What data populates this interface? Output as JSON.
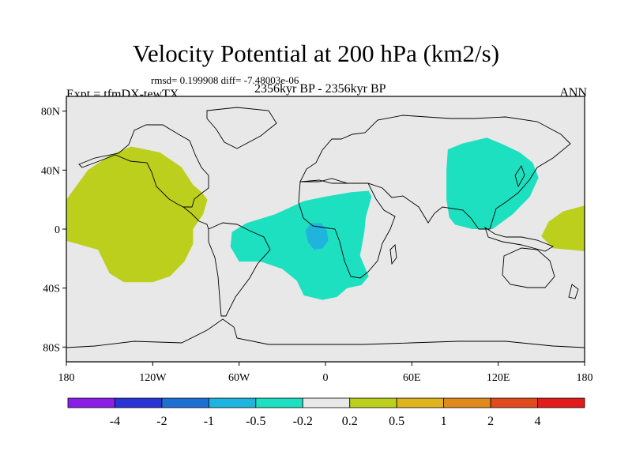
{
  "title": "Velocity Potential at 200 hPa (km2/s)",
  "stats_text": "rmsd= 0.199908 diff= -7.48003e-06",
  "experiment_text": "Expt = tfmDX-tewTX",
  "period_text": "2356kyr BP - 2356kyr BP",
  "season_text": "ANN",
  "map": {
    "projection": "cylindrical-equidistant",
    "lon_range": [
      -180,
      180
    ],
    "lat_range": [
      -90,
      90
    ],
    "background_color": "#e8e8e8",
    "y_ticks": [
      {
        "lat": 80,
        "label": "80N"
      },
      {
        "lat": 40,
        "label": "40N"
      },
      {
        "lat": 0,
        "label": "0"
      },
      {
        "lat": -40,
        "label": "40S"
      },
      {
        "lat": -80,
        "label": "80S"
      }
    ],
    "x_ticks": [
      {
        "lon": -180,
        "label": "180"
      },
      {
        "lon": -120,
        "label": "120W"
      },
      {
        "lon": -60,
        "label": "60W"
      },
      {
        "lon": 0,
        "label": "0"
      },
      {
        "lon": 60,
        "label": "60E"
      },
      {
        "lon": 120,
        "label": "120E"
      },
      {
        "lon": 180,
        "label": "180"
      }
    ],
    "regions": [
      {
        "name": "region-pacific-positive",
        "level": "0.2 to 0.5",
        "color": "#bccf1c",
        "points": [
          [
            -180,
            20
          ],
          [
            -165,
            40
          ],
          [
            -150,
            50
          ],
          [
            -135,
            56
          ],
          [
            -115,
            52
          ],
          [
            -100,
            42
          ],
          [
            -92,
            30
          ],
          [
            -86,
            25
          ],
          [
            -82,
            20
          ],
          [
            -85,
            10
          ],
          [
            -92,
            0
          ],
          [
            -92,
            -10
          ],
          [
            -98,
            -22
          ],
          [
            -108,
            -32
          ],
          [
            -120,
            -36
          ],
          [
            -140,
            -36
          ],
          [
            -150,
            -30
          ],
          [
            -158,
            -14
          ],
          [
            -180,
            -8
          ]
        ]
      },
      {
        "name": "region-east-pacific-positive",
        "level": "0.2 to 0.5",
        "color": "#bccf1c",
        "points": [
          [
            180,
            16
          ],
          [
            165,
            12
          ],
          [
            155,
            5
          ],
          [
            150,
            -5
          ],
          [
            158,
            -13
          ],
          [
            170,
            -14
          ],
          [
            180,
            -15
          ]
        ]
      },
      {
        "name": "region-africa-negative",
        "level": "-0.5 to -0.2",
        "color": "#1de0c0",
        "points": [
          [
            -65,
            -2
          ],
          [
            -55,
            4
          ],
          [
            -35,
            10
          ],
          [
            -15,
            19
          ],
          [
            0,
            22
          ],
          [
            18,
            25
          ],
          [
            30,
            26
          ],
          [
            32,
            22
          ],
          [
            28,
            8
          ],
          [
            27,
            -2
          ],
          [
            24,
            -18
          ],
          [
            30,
            -32
          ],
          [
            25,
            -38
          ],
          [
            15,
            -40
          ],
          [
            8,
            -46
          ],
          [
            -2,
            -48
          ],
          [
            -15,
            -45
          ],
          [
            -20,
            -35
          ],
          [
            -30,
            -27
          ],
          [
            -45,
            -22
          ],
          [
            -60,
            -22
          ],
          [
            -66,
            -12
          ]
        ]
      },
      {
        "name": "region-asia-negative",
        "level": "-0.5 to -0.2",
        "color": "#1de0c0",
        "points": [
          [
            85,
            54
          ],
          [
            95,
            58
          ],
          [
            112,
            62
          ],
          [
            122,
            58
          ],
          [
            135,
            52
          ],
          [
            144,
            45
          ],
          [
            148,
            35
          ],
          [
            142,
            22
          ],
          [
            130,
            10
          ],
          [
            116,
            0
          ],
          [
            102,
            0
          ],
          [
            90,
            3
          ],
          [
            86,
            8
          ],
          [
            84,
            20
          ],
          [
            84,
            40
          ]
        ]
      },
      {
        "name": "region-congo-negative",
        "level": "-1 to -0.5",
        "color": "#20b4dc",
        "points": [
          [
            -14,
            -1
          ],
          [
            -10,
            4
          ],
          [
            -3,
            4
          ],
          [
            1,
            -1
          ],
          [
            2,
            -8
          ],
          [
            -2,
            -13
          ],
          [
            -8,
            -14
          ],
          [
            -12,
            -9
          ]
        ]
      }
    ]
  },
  "colorbar": {
    "colors": [
      "#8a1ee6",
      "#2a33d6",
      "#1e6fd4",
      "#1eb4e0",
      "#1de0c0",
      "#e8e8e8",
      "#bccf1c",
      "#e0b41c",
      "#e08a1c",
      "#e04a1c",
      "#e01c1c"
    ],
    "labels": [
      "-4",
      "-2",
      "-1",
      "-0.5",
      "-0.2",
      "0.2",
      "0.5",
      "1",
      "2",
      "4"
    ]
  }
}
